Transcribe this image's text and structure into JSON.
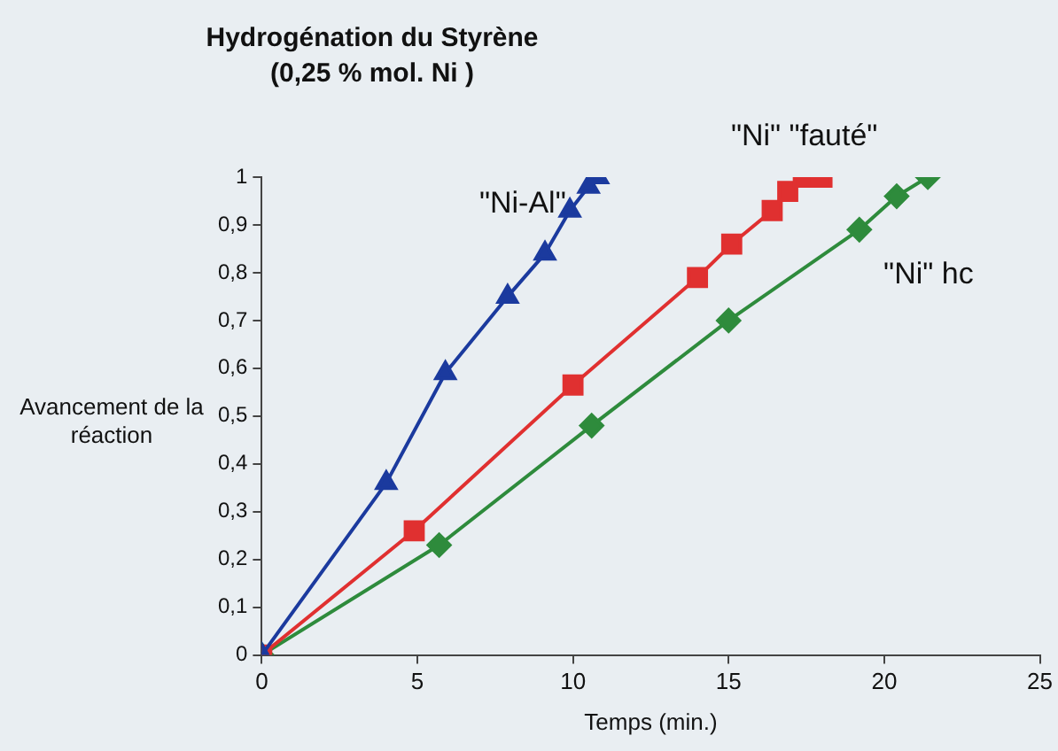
{
  "chart_data": {
    "type": "line",
    "title": "Hydrogénation du Styrène",
    "subtitle": "(0,25 % mol. Ni )",
    "xlabel": "Temps (min.)",
    "ylabel": "Avancement de la réaction",
    "xlim": [
      0,
      25
    ],
    "xticks": [
      0,
      5,
      10,
      15,
      20,
      25
    ],
    "ylim": [
      0,
      1
    ],
    "yticks": [
      0,
      {
        "value": 0.1,
        "label": "0,1"
      },
      {
        "value": 0.2,
        "label": "0,2"
      },
      {
        "value": 0.3,
        "label": "0,3"
      },
      {
        "value": 0.4,
        "label": "0,4"
      },
      {
        "value": 0.5,
        "label": "0,5"
      },
      {
        "value": 0.6,
        "label": "0,6"
      },
      {
        "value": 0.7,
        "label": "0,7"
      },
      {
        "value": 0.8,
        "label": "0,8"
      },
      {
        "value": 0.9,
        "label": "0,9"
      },
      1
    ],
    "grid": false,
    "legend": false,
    "line_style": "solid",
    "series": [
      {
        "name": "\"Ni-Al\"",
        "color": "#1b3a9e",
        "marker": "triangle",
        "x": [
          0,
          4.0,
          5.9,
          7.9,
          9.1,
          9.9,
          10.5,
          10.8
        ],
        "values": [
          0,
          0.36,
          0.59,
          0.75,
          0.84,
          0.93,
          0.98,
          1.0
        ]
      },
      {
        "name": "\"Ni\" \"fauté\"",
        "color": "#e03030",
        "marker": "square",
        "x": [
          0,
          4.9,
          10.0,
          14.0,
          15.1,
          16.4,
          16.9,
          17.4,
          18.0
        ],
        "values": [
          0,
          0.26,
          0.565,
          0.79,
          0.86,
          0.93,
          0.97,
          1.0,
          1.0
        ]
      },
      {
        "name": "\"Ni\" hc",
        "color": "#2e8b3c",
        "marker": "diamond",
        "x": [
          0,
          5.7,
          10.6,
          15.0,
          19.2,
          20.4,
          21.4
        ],
        "values": [
          0,
          0.23,
          0.48,
          0.7,
          0.89,
          0.96,
          1.0
        ]
      }
    ]
  }
}
